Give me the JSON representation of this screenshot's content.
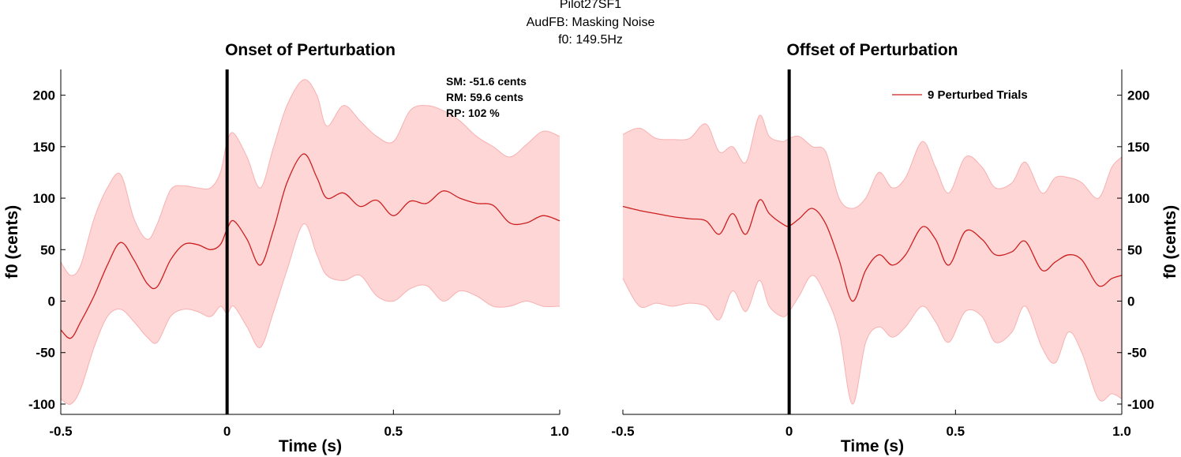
{
  "figure": {
    "suptitle": [
      "Pilot27SF1",
      "AudFB: Masking Noise",
      "f0: 149.5Hz"
    ]
  },
  "colors": {
    "band": "#ffd6d6",
    "band_edge": "#f7b0b0",
    "line": "#cc1f1f",
    "marker": "#000000"
  },
  "chart_data": [
    {
      "type": "area",
      "title": "Onset of Perturbation",
      "xlabel": "Time (s)",
      "ylabel": "f0 (cents)",
      "xlim": [
        -0.5,
        1.0
      ],
      "ylim": [
        -110,
        225
      ],
      "xticks": [
        -0.5,
        0,
        0.5,
        1.0
      ],
      "xtick_labels": [
        "-0.5",
        "0",
        "0.5",
        "1.0"
      ],
      "yticks": [
        -100,
        -50,
        0,
        50,
        100,
        150,
        200
      ],
      "ytick_labels": [
        "-100",
        "-50",
        "0",
        "50",
        "100",
        "150",
        "200"
      ],
      "yaxis_side": "left",
      "event_line_x": 0,
      "annotations": [
        "SM: -51.6 cents",
        "RM: 59.6 cents",
        "RP: 102 %"
      ],
      "series": [
        {
          "x": [
            -0.5,
            -0.47,
            -0.44,
            -0.4,
            -0.36,
            -0.32,
            -0.28,
            -0.24,
            -0.21,
            -0.17,
            -0.13,
            -0.09,
            -0.05,
            -0.02,
            0,
            0.02,
            0.06,
            0.1,
            0.14,
            0.18,
            0.23,
            0.27,
            0.3,
            0.35,
            0.4,
            0.45,
            0.5,
            0.55,
            0.6,
            0.65,
            0.7,
            0.75,
            0.8,
            0.85,
            0.9,
            0.95,
            1.0
          ],
          "y": [
            -28,
            -36,
            -20,
            5,
            35,
            57,
            40,
            17,
            14,
            40,
            55,
            55,
            50,
            55,
            70,
            78,
            60,
            35,
            70,
            115,
            143,
            120,
            100,
            105,
            92,
            98,
            83,
            97,
            95,
            107,
            100,
            95,
            93,
            76,
            76,
            83,
            78
          ]
        },
        {
          "x": [
            -0.5,
            -0.47,
            -0.44,
            -0.4,
            -0.36,
            -0.32,
            -0.28,
            -0.24,
            -0.21,
            -0.17,
            -0.13,
            -0.09,
            -0.05,
            -0.02,
            0,
            0.02,
            0.06,
            0.1,
            0.14,
            0.18,
            0.23,
            0.27,
            0.3,
            0.35,
            0.4,
            0.45,
            0.5,
            0.55,
            0.6,
            0.65,
            0.7,
            0.75,
            0.8,
            0.85,
            0.9,
            0.95,
            1.0
          ],
          "y": [
            38,
            25,
            35,
            80,
            110,
            123,
            80,
            60,
            75,
            108,
            112,
            110,
            110,
            125,
            155,
            163,
            140,
            110,
            150,
            190,
            215,
            200,
            170,
            190,
            175,
            160,
            155,
            185,
            190,
            185,
            175,
            160,
            150,
            140,
            152,
            165,
            160
          ]
        },
        {
          "x": [
            -0.5,
            -0.47,
            -0.44,
            -0.4,
            -0.36,
            -0.32,
            -0.28,
            -0.24,
            -0.21,
            -0.17,
            -0.13,
            -0.09,
            -0.05,
            -0.02,
            0,
            0.02,
            0.06,
            0.1,
            0.14,
            0.18,
            0.23,
            0.27,
            0.3,
            0.35,
            0.4,
            0.45,
            0.5,
            0.55,
            0.6,
            0.65,
            0.7,
            0.75,
            0.8,
            0.85,
            0.9,
            0.95,
            1.0
          ],
          "y": [
            -95,
            -100,
            -85,
            -45,
            -15,
            -8,
            -20,
            -35,
            -40,
            -15,
            -8,
            -10,
            -15,
            -5,
            -12,
            -5,
            -25,
            -45,
            -10,
            30,
            75,
            45,
            25,
            20,
            25,
            5,
            0,
            12,
            15,
            0,
            10,
            5,
            -5,
            -5,
            0,
            -5,
            -5
          ]
        }
      ]
    },
    {
      "type": "area",
      "title": "Offset of Perturbation",
      "xlabel": "Time (s)",
      "ylabel": "f0 (cents)",
      "xlim": [
        -0.5,
        1.0
      ],
      "ylim": [
        -110,
        225
      ],
      "xticks": [
        -0.5,
        0,
        0.5,
        1.0
      ],
      "xtick_labels": [
        "-0.5",
        "0",
        "0.5",
        "1.0"
      ],
      "yticks": [
        -100,
        -50,
        0,
        50,
        100,
        150,
        200
      ],
      "ytick_labels": [
        "-100",
        "-50",
        "0",
        "50",
        "100",
        "150",
        "200"
      ],
      "yaxis_side": "right",
      "event_line_x": 0,
      "legend": {
        "label": "9 Perturbed Trials",
        "location": "top-right"
      },
      "series": [
        {
          "name": "9 Perturbed Trials",
          "x": [
            -0.5,
            -0.45,
            -0.4,
            -0.35,
            -0.3,
            -0.25,
            -0.21,
            -0.17,
            -0.13,
            -0.09,
            -0.06,
            -0.02,
            0,
            0.03,
            0.07,
            0.11,
            0.15,
            0.19,
            0.23,
            0.27,
            0.31,
            0.35,
            0.4,
            0.44,
            0.48,
            0.53,
            0.58,
            0.62,
            0.67,
            0.71,
            0.76,
            0.8,
            0.84,
            0.88,
            0.93,
            0.97,
            1.0
          ],
          "y": [
            92,
            88,
            85,
            82,
            80,
            78,
            65,
            85,
            65,
            98,
            85,
            75,
            73,
            80,
            90,
            75,
            40,
            0,
            30,
            45,
            35,
            45,
            72,
            60,
            35,
            68,
            60,
            45,
            48,
            58,
            30,
            38,
            45,
            40,
            15,
            22,
            25
          ]
        },
        {
          "x": [
            -0.5,
            -0.45,
            -0.4,
            -0.35,
            -0.3,
            -0.25,
            -0.21,
            -0.17,
            -0.13,
            -0.09,
            -0.06,
            -0.02,
            0,
            0.03,
            0.07,
            0.11,
            0.15,
            0.19,
            0.23,
            0.27,
            0.31,
            0.35,
            0.4,
            0.44,
            0.48,
            0.53,
            0.58,
            0.62,
            0.67,
            0.71,
            0.76,
            0.8,
            0.84,
            0.88,
            0.93,
            0.97,
            1.0
          ],
          "y": [
            162,
            168,
            158,
            157,
            158,
            172,
            145,
            150,
            135,
            180,
            160,
            155,
            158,
            160,
            150,
            145,
            100,
            90,
            100,
            125,
            110,
            120,
            155,
            130,
            105,
            140,
            130,
            110,
            115,
            135,
            105,
            120,
            120,
            115,
            100,
            130,
            140
          ]
        },
        {
          "x": [
            -0.5,
            -0.45,
            -0.4,
            -0.35,
            -0.3,
            -0.25,
            -0.21,
            -0.17,
            -0.13,
            -0.09,
            -0.06,
            -0.02,
            0,
            0.03,
            0.07,
            0.11,
            0.15,
            0.19,
            0.23,
            0.27,
            0.31,
            0.35,
            0.4,
            0.44,
            0.48,
            0.53,
            0.58,
            0.62,
            0.67,
            0.71,
            0.76,
            0.8,
            0.84,
            0.88,
            0.93,
            0.97,
            1.0
          ],
          "y": [
            22,
            -5,
            -2,
            -5,
            -2,
            -5,
            -18,
            10,
            -10,
            20,
            -5,
            -15,
            -10,
            5,
            25,
            5,
            -30,
            -100,
            -40,
            -25,
            -35,
            -25,
            -5,
            -20,
            -40,
            -10,
            -15,
            -40,
            -30,
            -5,
            -45,
            -60,
            -30,
            -50,
            -95,
            -90,
            -95
          ]
        }
      ]
    }
  ]
}
